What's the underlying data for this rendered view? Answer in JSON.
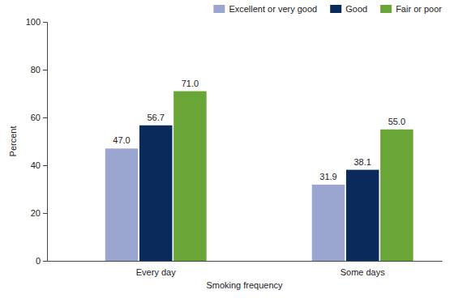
{
  "chart_data": {
    "type": "bar",
    "categories": [
      "Every day",
      "Some days"
    ],
    "series": [
      {
        "name": "Excellent or very good",
        "color": "#9aa5d0",
        "values": [
          47.0,
          31.9
        ],
        "value_labels": [
          "47.0",
          "31.9"
        ]
      },
      {
        "name": "Good",
        "color": "#0a2a5c",
        "values": [
          56.7,
          38.1
        ],
        "value_labels": [
          "56.7",
          "38.1"
        ]
      },
      {
        "name": "Fair or poor",
        "color": "#6aa637",
        "values": [
          71.0,
          55.0
        ],
        "value_labels": [
          "71.0",
          "55.0"
        ]
      }
    ],
    "x_label": "Smoking frequency",
    "y_label": "Percent",
    "ylim": [
      0,
      100
    ],
    "yticks": [
      0,
      20,
      40,
      60,
      80,
      100
    ],
    "grid": false,
    "legend": "top-right",
    "data_labels": true
  }
}
